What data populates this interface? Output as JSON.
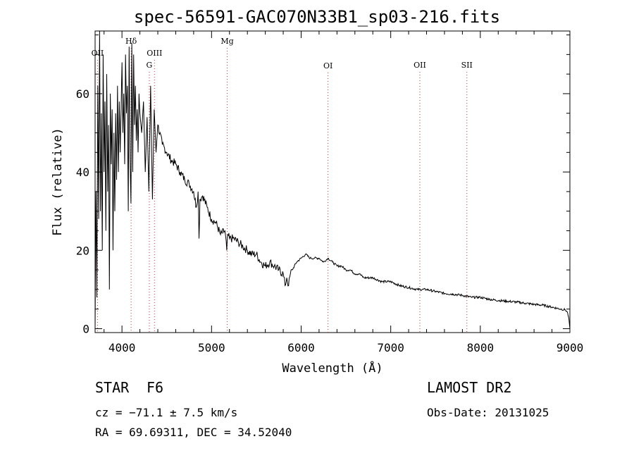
{
  "chart_data": {
    "type": "line",
    "title": "spec-56591-GAC070N33B1_sp03-216.fits",
    "xlabel": "Wavelength (Å)",
    "ylabel": "Flux (relative)",
    "xlim": [
      3700,
      9000
    ],
    "ylim": [
      -1,
      76
    ],
    "xticks": [
      "4000",
      "5000",
      "6000",
      "7000",
      "8000",
      "9000"
    ],
    "yticks": [
      "0",
      "20",
      "40",
      "60"
    ],
    "x_tick_values": [
      4000,
      5000,
      6000,
      7000,
      8000,
      9000
    ],
    "y_tick_values": [
      0,
      20,
      40,
      60
    ],
    "series": [
      {
        "x": [
          3700,
          3710,
          3720,
          3730,
          3740,
          3750,
          3760,
          3770,
          3780,
          3790,
          3800,
          3810,
          3820,
          3830,
          3840,
          3850,
          3860,
          3870,
          3880,
          3890,
          3900,
          3910,
          3920,
          3930,
          3940,
          3950,
          3960,
          3970,
          3980,
          3990,
          4000,
          4010,
          4020,
          4030,
          4040,
          4050,
          4060,
          4070,
          4080,
          4090,
          4100,
          4110,
          4120,
          4130,
          4140,
          4150,
          4160,
          4170,
          4180,
          4190,
          4200,
          4220,
          4240,
          4260,
          4280,
          4300,
          4320,
          4340,
          4360,
          4380,
          4400,
          4450,
          4500,
          4550,
          4600,
          4650,
          4700,
          4750,
          4800,
          4830,
          4850,
          4860,
          4870,
          4900,
          4950,
          5000,
          5050,
          5100,
          5150,
          5170,
          5180,
          5200,
          5250,
          5300,
          5350,
          5400,
          5450,
          5500,
          5550,
          5600,
          5650,
          5700,
          5750,
          5800,
          5820,
          5840,
          5860,
          5880,
          5900,
          5950,
          6000,
          6050,
          6100,
          6150,
          6200,
          6250,
          6300,
          6350,
          6400,
          6450,
          6500,
          6550,
          6600,
          6650,
          6700,
          6800,
          6900,
          7000,
          7100,
          7200,
          7300,
          7400,
          7500,
          7600,
          7700,
          7800,
          7900,
          8000,
          8100,
          8200,
          8300,
          8400,
          8500,
          8600,
          8700,
          8800,
          8900,
          8950,
          8970,
          8985,
          9000
        ],
        "y": [
          0,
          35,
          8,
          62,
          28,
          76,
          30,
          55,
          20,
          70,
          40,
          58,
          25,
          65,
          35,
          52,
          10,
          60,
          42,
          56,
          20,
          50,
          30,
          55,
          38,
          62,
          40,
          58,
          45,
          56,
          68,
          50,
          60,
          42,
          70,
          55,
          62,
          30,
          72,
          44,
          32,
          73,
          40,
          70,
          52,
          62,
          48,
          56,
          45,
          60,
          55,
          50,
          58,
          40,
          54,
          35,
          62,
          33,
          56,
          45,
          52,
          47,
          45,
          43,
          42,
          40,
          38,
          37,
          35,
          31,
          35,
          23,
          33,
          34,
          31,
          28,
          27,
          24,
          25,
          20,
          24,
          23,
          23,
          22,
          21,
          20,
          19,
          19,
          17,
          16,
          17,
          16,
          15,
          14,
          11,
          13,
          11,
          14,
          15,
          17,
          18,
          19,
          18,
          18,
          18,
          17,
          18,
          17,
          16,
          16,
          15,
          15,
          14,
          14,
          13,
          13,
          12,
          12,
          11,
          10.5,
          10,
          10,
          9.5,
          9,
          8.8,
          8.5,
          8,
          8,
          7.5,
          7.2,
          7,
          6.8,
          6.5,
          6.2,
          6,
          5.5,
          5,
          4.8,
          4.3,
          3,
          0
        ]
      }
    ],
    "line_labels": [
      {
        "label": "OII",
        "x": 3727,
        "row": 1
      },
      {
        "label": "Hδ",
        "x": 4102,
        "row": 0
      },
      {
        "label": "OIII",
        "x": 4363,
        "row": 1
      },
      {
        "label": "G",
        "x": 4305,
        "row": 2
      },
      {
        "label": "Mg",
        "x": 5175,
        "row": 0
      },
      {
        "label": "OI",
        "x": 6300,
        "row": 3
      },
      {
        "label": "OII",
        "x": 7325,
        "row": 2
      },
      {
        "label": "SII",
        "x": 7850,
        "row": 2
      }
    ],
    "grid": false
  },
  "info": {
    "class": "STAR",
    "subclass": "F6",
    "cz": "cz = −71.1 ± 7.5 km/s",
    "radec": "RA =  69.69311, DEC =  34.52040",
    "survey": "LAMOST DR2",
    "obs_date": "Obs-Date: 20131025"
  }
}
